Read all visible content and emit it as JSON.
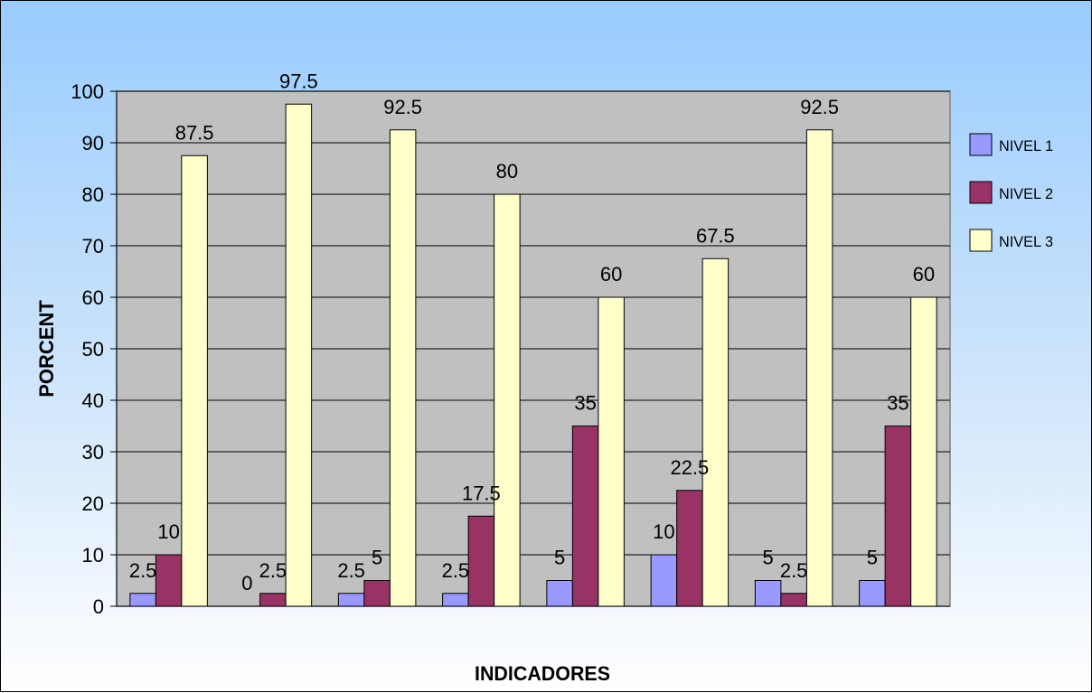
{
  "chart_data": {
    "type": "bar",
    "categories": [
      "",
      "",
      "",
      "",
      "",
      "",
      "",
      ""
    ],
    "series": [
      {
        "name": "NIVEL 1",
        "color": "#9999ff",
        "values": [
          2.5,
          0,
          2.5,
          2.5,
          5,
          10,
          5,
          5
        ]
      },
      {
        "name": "NIVEL 2",
        "color": "#993366",
        "values": [
          10,
          2.5,
          5,
          17.5,
          35,
          22.5,
          2.5,
          35
        ]
      },
      {
        "name": "NIVEL 3",
        "color": "#ffffcc",
        "values": [
          87.5,
          97.5,
          92.5,
          80,
          60,
          67.5,
          92.5,
          60
        ]
      }
    ],
    "title": "",
    "xlabel": "INDICADORES",
    "ylabel": "PORCENT",
    "ylim": [
      0,
      100
    ],
    "yticks": [
      "0",
      "10",
      "20",
      "30",
      "40",
      "50",
      "60",
      "70",
      "80",
      "90",
      "100"
    ],
    "grid": true,
    "legend": "right",
    "plot_background": "#c0c0c0",
    "gridline_color": "#000000"
  }
}
